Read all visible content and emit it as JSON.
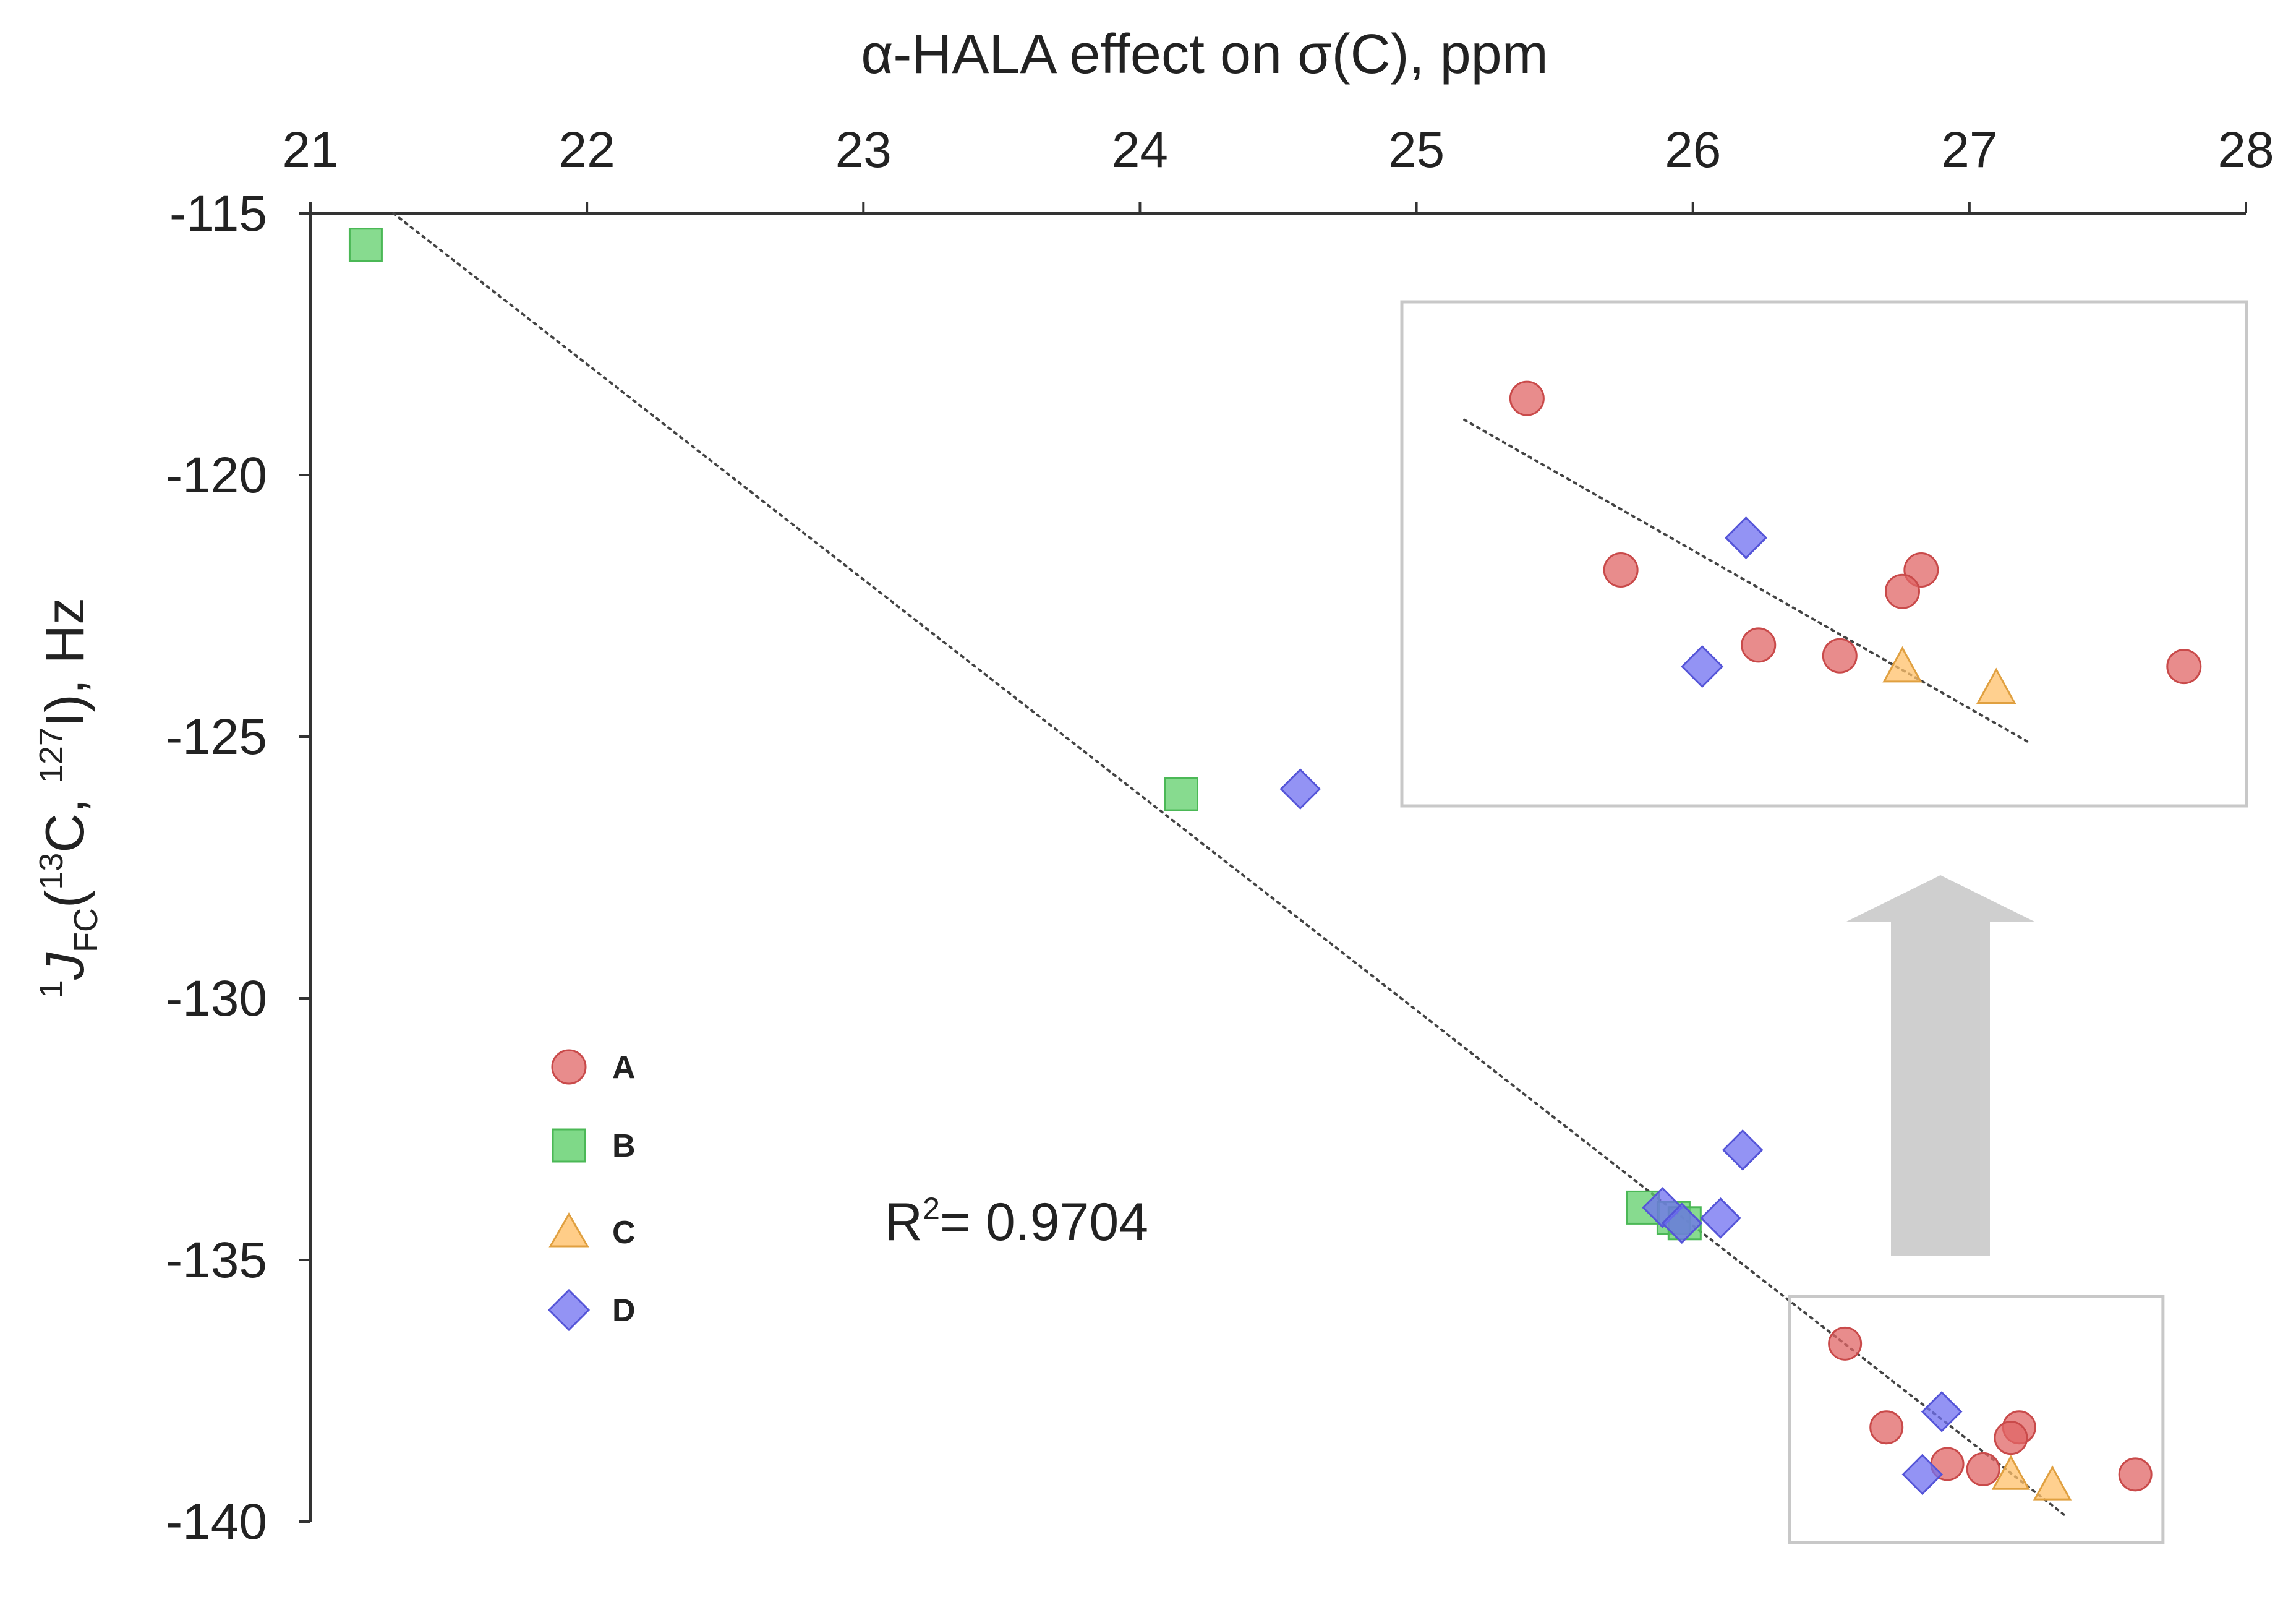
{
  "chart_data": {
    "type": "scatter",
    "title": "α-HALA effect on σ(C), ppm",
    "xlabel": "α-HALA effect on σ(C), ppm",
    "ylabel": {
      "prefix": "1",
      "j": "J",
      "sub": "FC",
      "open": "(",
      "iso1": "13",
      "el1": "C, ",
      "iso2": "127",
      "el2": "I), Hz"
    },
    "xlim": [
      21,
      28
    ],
    "ylim": [
      -140,
      -115
    ],
    "xticks": [
      "21",
      "22",
      "23",
      "24",
      "25",
      "26",
      "27",
      "28"
    ],
    "yticks": [
      "-115",
      "-120",
      "-125",
      "-130",
      "-135",
      "-140"
    ],
    "x_axis_position": "top",
    "grid": false,
    "legend_position": "center-left",
    "series": [
      {
        "name": "A",
        "marker": "circle",
        "color": "#e06666",
        "points": [
          [
            26.55,
            -136.6
          ],
          [
            26.7,
            -138.2
          ],
          [
            26.92,
            -138.9
          ],
          [
            27.05,
            -139.0
          ],
          [
            27.18,
            -138.2
          ],
          [
            27.15,
            -138.4
          ],
          [
            27.6,
            -139.1
          ]
        ]
      },
      {
        "name": "B",
        "marker": "square",
        "color": "#5fcf6a",
        "points": [
          [
            21.2,
            -115.6
          ],
          [
            24.15,
            -126.1
          ],
          [
            25.82,
            -134.0
          ],
          [
            25.93,
            -134.2
          ],
          [
            25.97,
            -134.3
          ]
        ]
      },
      {
        "name": "C",
        "marker": "triangle",
        "color": "#ffc06a",
        "points": [
          [
            27.15,
            -139.1
          ],
          [
            27.3,
            -139.3
          ]
        ]
      },
      {
        "name": "D",
        "marker": "diamond",
        "color": "#6f6ff0",
        "points": [
          [
            24.58,
            -126.0
          ],
          [
            25.89,
            -134.0
          ],
          [
            25.96,
            -134.3
          ],
          [
            26.1,
            -134.2
          ],
          [
            26.18,
            -132.9
          ],
          [
            26.9,
            -137.9
          ],
          [
            26.83,
            -139.1
          ]
        ]
      }
    ],
    "trendline": {
      "style": "dotted",
      "x": [
        21.3,
        27.35
      ],
      "y": [
        -115.0,
        -139.9
      ]
    },
    "annotation": {
      "r2_prefix": "R",
      "r2_sup": "2",
      "r2_value": "= 0.9704"
    },
    "zoom_region": {
      "x": [
        26.35,
        27.7
      ],
      "y": [
        -135.7,
        -140.4
      ]
    },
    "inset": {
      "description": "magnified view of the boxed region",
      "trend": {
        "x": [
          26.45,
          27.35
        ],
        "y": [
          -136.8,
          -139.8
        ]
      }
    }
  }
}
